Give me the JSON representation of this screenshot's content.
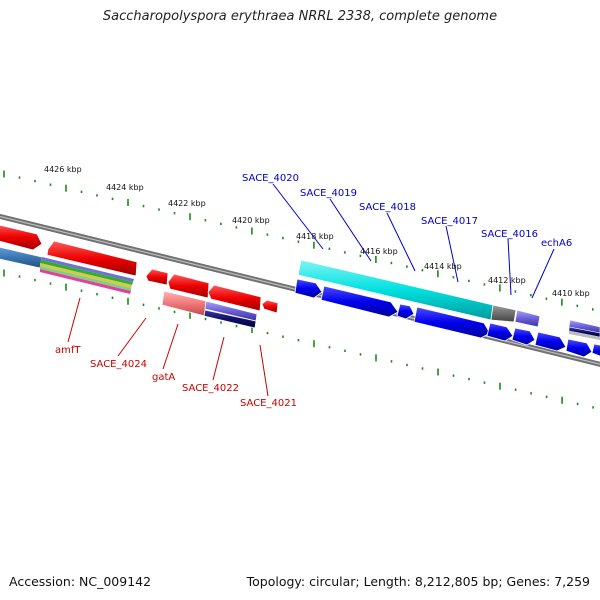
{
  "title": "Saccharopolyspora erythraea NRRL 2338, complete genome",
  "footer": {
    "accession": "Accession: NC_009142",
    "summary": "Topology: circular; Length: 8,212,805 bp; Genes: 7,259"
  },
  "colors": {
    "backbone": "#8a8a8a",
    "tick": "#1a8a1a",
    "forward_label": "#0000cc",
    "reverse_label": "#cc0000",
    "forward_gene": "#0000ee",
    "reverse_gene": "#ee0000",
    "rna": "#00e5e5"
  },
  "ticks": [
    "4426 kbp",
    "4424 kbp",
    "4422 kbp",
    "4420 kbp",
    "4418 kbp",
    "4416 kbp",
    "4414 kbp",
    "4412 kbp",
    "4410 kbp"
  ],
  "forward_labels": [
    "SACE_4020",
    "SACE_4019",
    "SACE_4018",
    "SACE_4017",
    "SACE_4016",
    "echA6"
  ],
  "reverse_labels": [
    "amfT",
    "SACE_4024",
    "gatA",
    "SACE_4022",
    "SACE_4021"
  ]
}
